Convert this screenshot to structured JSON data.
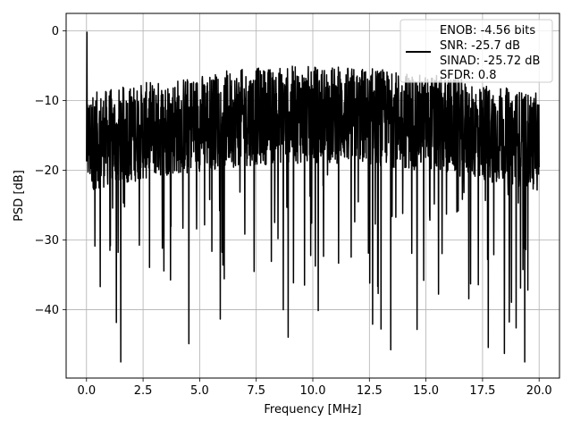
{
  "chart_data": {
    "type": "line",
    "title": "",
    "xlabel": "Frequency [MHz]",
    "ylabel": "PSD [dB]",
    "xlim": [
      -0.9,
      20.9
    ],
    "ylim": [
      -49.8,
      2.5
    ],
    "xticks": [
      0.0,
      2.5,
      5.0,
      7.5,
      10.0,
      12.5,
      15.0,
      17.5,
      20.0
    ],
    "xtick_labels": [
      "0.0",
      "2.5",
      "5.0",
      "7.5",
      "10.0",
      "12.5",
      "15.0",
      "17.5",
      "20.0"
    ],
    "yticks": [
      0,
      -10,
      -20,
      -30,
      -40
    ],
    "ytick_labels": [
      "0",
      "−10",
      "−20",
      "−30",
      "−40"
    ],
    "grid": true,
    "legend_position": "top-right",
    "legend_lines": [
      "ENOB: -4.56 bits",
      "SNR: -25.7 dB",
      "SINAD: -25.72 dB",
      "SFDR: 0.8"
    ],
    "series": [
      {
        "color": "#000000",
        "x_range": [
          0.0,
          20.0
        ],
        "points": 2048,
        "dc_peak_db": -0.2,
        "noise_floor_db": -15,
        "max_dip_db": -47.5,
        "peak_max_db": -1.6
      }
    ]
  }
}
